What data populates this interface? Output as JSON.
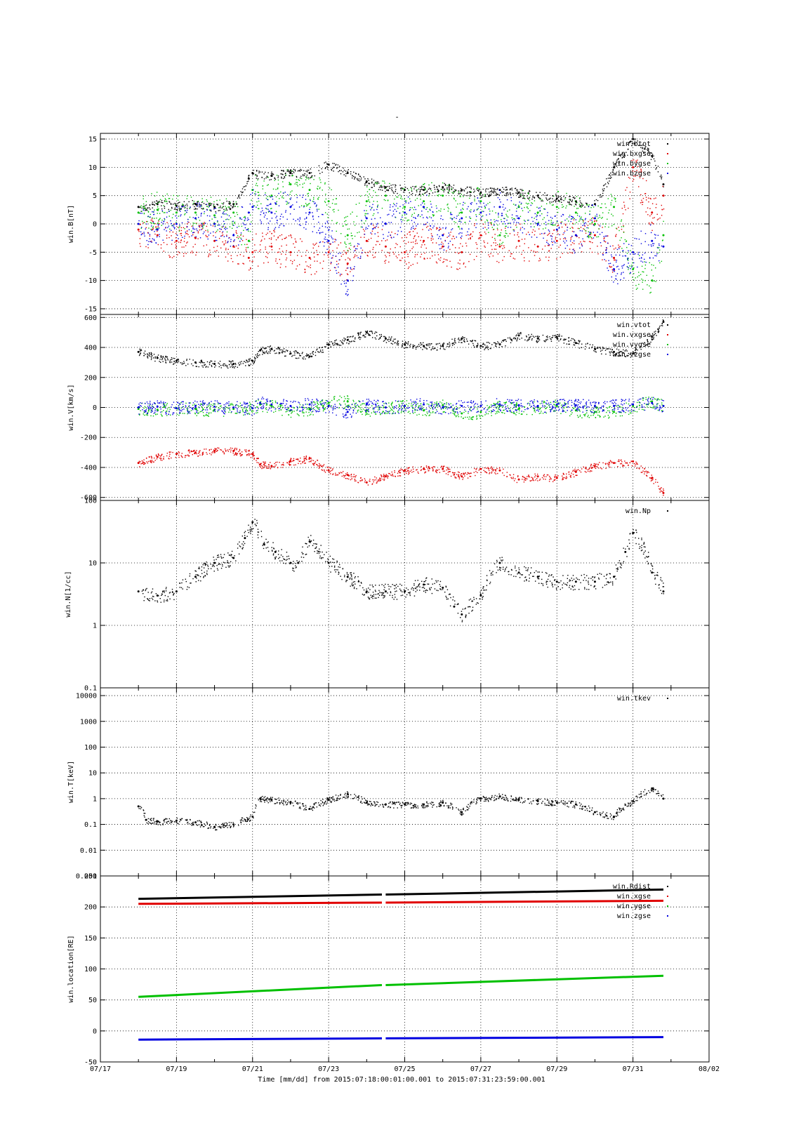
{
  "page": {
    "title": "-"
  },
  "xaxis": {
    "tick_labels": [
      "07/17",
      "07/19",
      "07/21",
      "07/23",
      "07/25",
      "07/27",
      "07/29",
      "07/31",
      "08/02"
    ],
    "range_days": [
      0,
      16
    ],
    "label": "Time [mm/dd]  from 2015:07:18:00:01:00.001  to  2015:07:31:23:59:00.001"
  },
  "colors": {
    "black": "#000000",
    "red": "#e00000",
    "green": "#00c000",
    "blue": "#0000e0"
  },
  "chart_data": [
    {
      "type": "scatter",
      "ylabel": "win.B[nT]",
      "ylim": [
        -16,
        16
      ],
      "yticks": [
        15,
        10,
        5,
        0,
        -5,
        -10,
        -15
      ],
      "grid": true,
      "legend": "top-right",
      "series": [
        {
          "name": "win.btot",
          "color": "#000000",
          "x": [
            1,
            1.5,
            2,
            2.5,
            3,
            3.5,
            3.9,
            4,
            4.5,
            5,
            5.5,
            6,
            6.5,
            7,
            7.5,
            8,
            8.5,
            9,
            9.5,
            10,
            10.5,
            11,
            11.5,
            12,
            12.5,
            13,
            13.5,
            14,
            14.5,
            14.8
          ],
          "y": [
            3,
            3.5,
            3.2,
            3.5,
            3,
            3.5,
            8,
            9,
            8.5,
            9,
            9,
            10.5,
            9,
            7.5,
            6.5,
            6,
            6,
            6.5,
            6,
            5.5,
            6,
            5.5,
            5,
            4.5,
            4,
            3.5,
            10,
            15,
            12,
            7
          ]
        },
        {
          "name": "win.bxgse",
          "color": "#e00000",
          "x": [
            1,
            1.5,
            2,
            2.5,
            3,
            3.5,
            3.9,
            4,
            4.5,
            5,
            5.5,
            6,
            6.5,
            7,
            7.5,
            8,
            8.5,
            9,
            9.5,
            10,
            10.5,
            11,
            11.5,
            12,
            12.5,
            13,
            13.5,
            14,
            14.5,
            14.8
          ],
          "y": [
            -1,
            -2,
            -3,
            -2.5,
            -3,
            -4,
            -6,
            -5,
            -4,
            -5,
            -6,
            -5,
            -7,
            -3,
            -4,
            -5,
            -3,
            -4,
            -5,
            -2,
            -4,
            -3,
            -4,
            -3,
            -2,
            -2,
            -6,
            10,
            2,
            5
          ]
        },
        {
          "name": "win.bygse",
          "color": "#00c000",
          "x": [
            1,
            1.5,
            2,
            2.5,
            3,
            3.5,
            3.9,
            4,
            4.5,
            5,
            5.5,
            6,
            6.5,
            7,
            7.5,
            8,
            8.5,
            9,
            9.5,
            10,
            10.5,
            11,
            11.5,
            12,
            12.5,
            13,
            13.5,
            14,
            14.5,
            14.8
          ],
          "y": [
            2,
            2.5,
            2,
            2,
            1.5,
            2,
            -3,
            6,
            5,
            7,
            6,
            4,
            -2,
            4,
            5,
            3,
            4,
            5,
            2,
            4,
            -2,
            3,
            2,
            3,
            2,
            0,
            3,
            -8,
            -10,
            -2
          ]
        },
        {
          "name": "win.bzgse",
          "color": "#0000e0",
          "x": [
            1,
            1.5,
            2,
            2.5,
            3,
            3.5,
            3.9,
            4,
            4.5,
            5,
            5.5,
            6,
            6.5,
            7,
            7.5,
            8,
            8.5,
            9,
            9.5,
            10,
            10.5,
            11,
            11.5,
            12,
            12.5,
            13,
            13.5,
            14,
            14.5,
            14.8
          ],
          "y": [
            0,
            -1,
            0,
            1,
            0,
            -2,
            2,
            3,
            2,
            3,
            2,
            -3,
            -10,
            1,
            0,
            2,
            3,
            -2,
            1,
            2,
            3,
            1,
            0,
            -1,
            -2,
            1,
            -8,
            -5,
            -3,
            -4
          ]
        }
      ]
    },
    {
      "type": "scatter",
      "ylabel": "win.V[km/s]",
      "ylim": [
        -620,
        620
      ],
      "yticks": [
        600,
        400,
        200,
        0,
        -200,
        -400,
        -600
      ],
      "grid": true,
      "legend": "top-right",
      "series": [
        {
          "name": "win.vtot",
          "color": "#000000",
          "x": [
            1,
            1.5,
            2,
            2.5,
            3,
            3.5,
            4,
            4.2,
            4.5,
            5,
            5.5,
            6,
            6.5,
            7,
            7.5,
            8,
            8.5,
            9,
            9.5,
            10,
            10.5,
            11,
            11.5,
            12,
            12.5,
            13,
            13.5,
            14,
            14.5,
            14.8
          ],
          "y": [
            370,
            330,
            310,
            300,
            290,
            290,
            310,
            380,
            390,
            360,
            340,
            420,
            450,
            500,
            460,
            420,
            410,
            410,
            460,
            410,
            420,
            480,
            460,
            470,
            430,
            390,
            370,
            360,
            470,
            570
          ]
        },
        {
          "name": "win.vxgse",
          "color": "#e00000",
          "x": [
            1,
            1.5,
            2,
            2.5,
            3,
            3.5,
            4,
            4.2,
            4.5,
            5,
            5.5,
            6,
            6.5,
            7,
            7.5,
            8,
            8.5,
            9,
            9.5,
            10,
            10.5,
            11,
            11.5,
            12,
            12.5,
            13,
            13.5,
            14,
            14.5,
            14.8
          ],
          "y": [
            -370,
            -330,
            -310,
            -300,
            -290,
            -290,
            -310,
            -380,
            -390,
            -360,
            -340,
            -420,
            -450,
            -500,
            -460,
            -420,
            -410,
            -410,
            -460,
            -410,
            -420,
            -480,
            -460,
            -470,
            -430,
            -390,
            -370,
            -360,
            -470,
            -570
          ]
        },
        {
          "name": "win.vygse",
          "color": "#00c000",
          "x": [
            1,
            1.5,
            2,
            2.5,
            3,
            3.5,
            4,
            4.2,
            4.5,
            5,
            5.5,
            6,
            6.5,
            7,
            7.5,
            8,
            8.5,
            9,
            9.5,
            10,
            10.5,
            11,
            11.5,
            12,
            12.5,
            13,
            13.5,
            14,
            14.5,
            14.8
          ],
          "y": [
            -10,
            -15,
            -5,
            -10,
            -15,
            -10,
            -5,
            20,
            10,
            -20,
            -10,
            30,
            40,
            -20,
            0,
            10,
            -20,
            15,
            -40,
            -30,
            10,
            -10,
            0,
            10,
            -20,
            -30,
            -30,
            10,
            40,
            10
          ]
        },
        {
          "name": "win.vzgse",
          "color": "#0000e0",
          "x": [
            1,
            1.5,
            2,
            2.5,
            3,
            3.5,
            4,
            4.2,
            4.5,
            5,
            5.5,
            6,
            6.5,
            7,
            7.5,
            8,
            8.5,
            9,
            9.5,
            10,
            10.5,
            11,
            11.5,
            12,
            12.5,
            13,
            13.5,
            14,
            14.5,
            14.8
          ],
          "y": [
            0,
            5,
            -5,
            10,
            5,
            0,
            -5,
            30,
            20,
            10,
            20,
            10,
            -30,
            20,
            0,
            10,
            20,
            0,
            10,
            10,
            20,
            15,
            10,
            20,
            15,
            10,
            10,
            20,
            30,
            10
          ]
        }
      ]
    },
    {
      "type": "scatter",
      "ylabel": "win.N[1/cc]",
      "yscale": "log",
      "ylim": [
        0.1,
        100
      ],
      "yticks": [
        100,
        10,
        1,
        0.1
      ],
      "grid": true,
      "legend": "top-right",
      "series": [
        {
          "name": "win.Np",
          "color": "#000000",
          "x": [
            1,
            1.5,
            2,
            2.5,
            3,
            3.5,
            3.8,
            4,
            4.3,
            4.6,
            5,
            5.2,
            5.5,
            6,
            6.5,
            7,
            7.5,
            8,
            8.5,
            9,
            9.3,
            9.5,
            10,
            10.5,
            11,
            11.5,
            12,
            12.5,
            13,
            13.5,
            13.8,
            14,
            14.5,
            14.8
          ],
          "y": [
            3.5,
            3,
            3.5,
            6,
            10,
            12,
            25,
            45,
            20,
            15,
            10,
            10,
            22,
            10,
            6,
            3.5,
            3.5,
            3.5,
            4.5,
            4,
            2,
            1.5,
            3,
            10,
            7,
            6,
            5,
            5,
            5,
            6,
            15,
            30,
            7,
            3.5
          ]
        }
      ]
    },
    {
      "type": "scatter",
      "ylabel": "win.T[keV]",
      "yscale": "log",
      "ylim": [
        0.001,
        20000
      ],
      "yticks": [
        10000,
        1000,
        100,
        10,
        1,
        0.1,
        0.01,
        0.001
      ],
      "grid": true,
      "legend": "top-right",
      "series": [
        {
          "name": "win.tkev",
          "color": "#000000",
          "x": [
            1,
            1.2,
            1.5,
            2,
            2.5,
            3,
            3.5,
            4,
            4.2,
            4.5,
            5,
            5.5,
            6,
            6.5,
            7,
            7.5,
            8,
            8.5,
            9,
            9.5,
            10,
            10.5,
            11,
            11.5,
            12,
            12.5,
            13,
            13.5,
            14,
            14.5,
            14.8
          ],
          "y": [
            0.5,
            0.15,
            0.13,
            0.14,
            0.12,
            0.08,
            0.1,
            0.2,
            1,
            0.9,
            0.7,
            0.4,
            0.9,
            1.5,
            0.7,
            0.6,
            0.6,
            0.6,
            0.7,
            0.3,
            1,
            1.2,
            0.9,
            0.8,
            0.7,
            0.6,
            0.3,
            0.2,
            0.8,
            2.5,
            1
          ]
        }
      ]
    },
    {
      "type": "line",
      "ylabel": "win.location[RE]",
      "ylim": [
        -50,
        250
      ],
      "yticks": [
        250,
        200,
        150,
        100,
        50,
        0,
        -50
      ],
      "grid": true,
      "legend": "top-right",
      "series": [
        {
          "name": "win.Rdist",
          "color": "#000000",
          "x": [
            1,
            7.4,
            7.5,
            14.8
          ],
          "y": [
            213,
            220,
            220,
            228
          ]
        },
        {
          "name": "win.xgse",
          "color": "#e00000",
          "x": [
            1,
            7.4,
            7.5,
            14.8
          ],
          "y": [
            205,
            207,
            207,
            210
          ]
        },
        {
          "name": "win.ygse",
          "color": "#00c000",
          "x": [
            1,
            7.4,
            7.5,
            14.8
          ],
          "y": [
            55,
            74,
            74,
            89
          ]
        },
        {
          "name": "win.zgse",
          "color": "#0000e0",
          "x": [
            1,
            7.4,
            7.5,
            14.8
          ],
          "y": [
            -14,
            -12,
            -12,
            -10
          ]
        }
      ]
    }
  ]
}
